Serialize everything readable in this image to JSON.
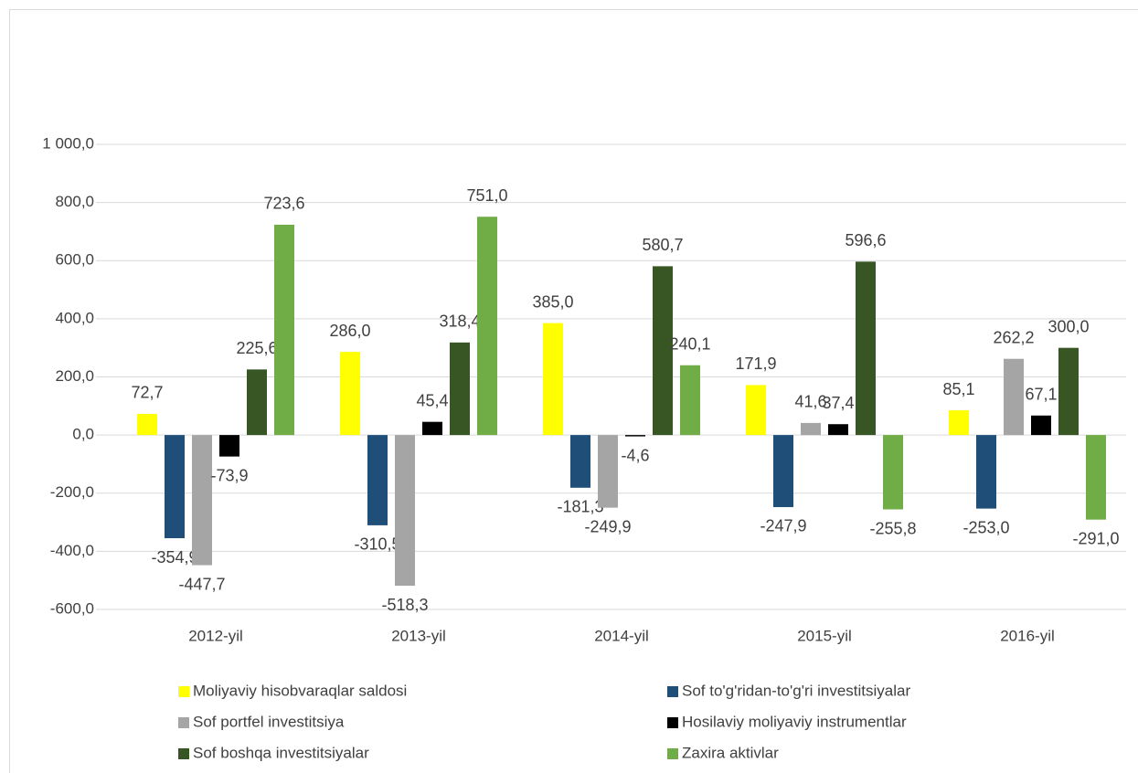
{
  "chart_data": {
    "type": "bar",
    "categories": [
      "2012-yil",
      "2013-yil",
      "2014-yil",
      "2015-yil",
      "2016-yil"
    ],
    "series": [
      {
        "name": "Moliyaviy hisobvaraqlar saldosi",
        "color": "#ffff00",
        "values": [
          72.7,
          286.0,
          385.0,
          171.9,
          85.1
        ],
        "value_labels": [
          "72,7",
          "286,0",
          "385,0",
          "171,9",
          "85,1"
        ]
      },
      {
        "name": "Sof to'g'ridan-to'g'ri investitsiyalar",
        "color": "#1f4e79",
        "values": [
          -354.9,
          -310.5,
          -181.3,
          -247.9,
          -253.0
        ],
        "value_labels": [
          "-354,9",
          "-310,5",
          "-181,3",
          "-247,9",
          "-253,0"
        ]
      },
      {
        "name": "Sof portfel investitsiya",
        "color": "#a5a5a5",
        "values": [
          -447.7,
          -518.3,
          -249.9,
          41.6,
          262.2
        ],
        "value_labels": [
          "-447,7",
          "-518,3",
          "-249,9",
          "41,6",
          "262,2"
        ]
      },
      {
        "name": "Hosilaviy moliyaviy instrumentlar",
        "color": "#000000",
        "values": [
          -73.9,
          45.4,
          -4.6,
          37.4,
          67.1
        ],
        "value_labels": [
          "-73,9",
          "45,4",
          "-4,6",
          "37,4",
          "67,1"
        ]
      },
      {
        "name": "Sof boshqa investitsiyalar",
        "color": "#375623",
        "values": [
          225.6,
          318.4,
          580.7,
          596.6,
          300.0
        ],
        "value_labels": [
          "225,6",
          "318,4",
          "580,7",
          "596,6",
          "300,0"
        ]
      },
      {
        "name": "Zaxira aktivlar",
        "color": "#70ad47",
        "values": [
          723.6,
          751.0,
          240.1,
          -255.8,
          -291.0
        ],
        "value_labels": [
          "723,6",
          "751,0",
          "240,1",
          "-255,8",
          "-291,0"
        ]
      }
    ],
    "ylim": [
      -600,
      1000
    ],
    "yticks": [
      {
        "value": -600,
        "label": "-600,0"
      },
      {
        "value": -400,
        "label": "-400,0"
      },
      {
        "value": -200,
        "label": "-200,0"
      },
      {
        "value": 0,
        "label": "0,0"
      },
      {
        "value": 200,
        "label": "200,0"
      },
      {
        "value": 400,
        "label": "400,0"
      },
      {
        "value": 600,
        "label": "600,0"
      },
      {
        "value": 800,
        "label": "800,0"
      },
      {
        "value": 1000,
        "label": "1 000,0"
      }
    ],
    "grid": true,
    "legend": "bottom"
  }
}
